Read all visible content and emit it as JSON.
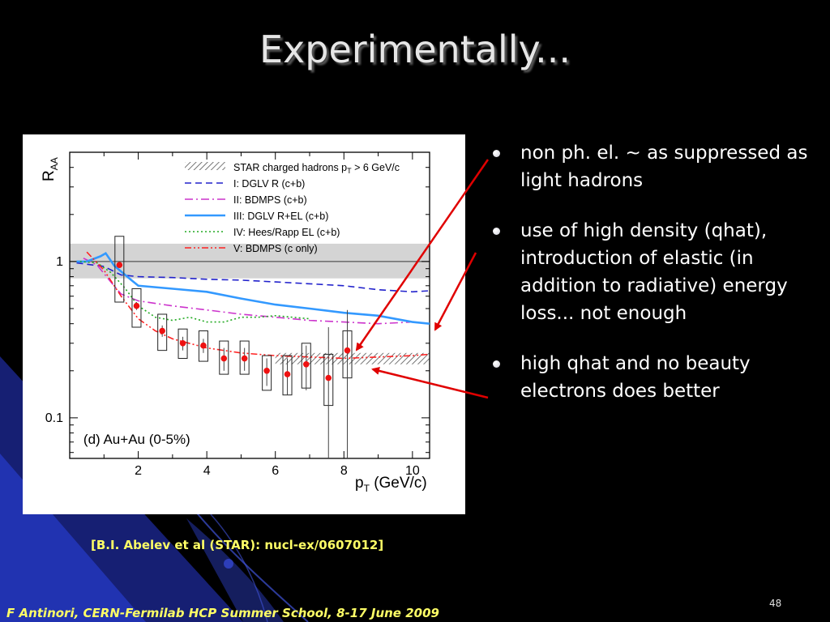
{
  "slide": {
    "title": "Experimentally...",
    "bullets": [
      "non ph. el. ~ as suppressed as light hadrons",
      "use of high density (qhat), introduction of elastic (in addition to radiative) energy loss... not enough",
      "high qhat and no beauty electrons does better"
    ],
    "reference": "[B.I. Abelev et al (STAR): nucl-ex/0607012]",
    "footer": "F Antinori, CERN-Fermilab HCP Summer School, 8-17 June 2009",
    "page_number": "48",
    "colors": {
      "background": "#000000",
      "accent_blue": "#1e2fa0",
      "footer_text": "#ffff66",
      "arrow": "#e00000"
    }
  },
  "chart_data": {
    "type": "scatter",
    "ylabel": "R",
    "ylabel_sub": "AA",
    "xlabel": "p",
    "xlabel_sub": "T",
    "xlabel_unit": "(GeV/c)",
    "yscale": "log",
    "xlim": [
      0,
      10.5
    ],
    "ylim": [
      0.055,
      5.0
    ],
    "xticks": [
      2,
      4,
      6,
      8,
      10
    ],
    "yticks": [
      0.1,
      1
    ],
    "ytick_labels": [
      "0.1",
      "1"
    ],
    "annotation": "(d) Au+Au (0-5%)",
    "reference_line": 1,
    "bands": [
      {
        "name": "light_band",
        "x": [
          0,
          10.5
        ],
        "ylow": 0.78,
        "yhigh": 1.3,
        "color": "#d4d4d4"
      },
      {
        "name": "star_hatch",
        "x": [
          6.0,
          10.5
        ],
        "ylow": 0.22,
        "yhigh": 0.26,
        "color": "#666666"
      }
    ],
    "legend": {
      "position": "top-right",
      "entries": [
        {
          "label": "STAR charged hadrons p",
          "sub": "T",
          "suffix": " > 6 GeV/c",
          "style": "hatch",
          "color": "#777777"
        },
        {
          "label": "I:   DGLV R (c+b)",
          "style": "dashed",
          "color": "#2222cc"
        },
        {
          "label": "II:  BDMPS (c+b)",
          "style": "dashdot",
          "color": "#cc33cc"
        },
        {
          "label": "III: DGLV R+EL (c+b)",
          "style": "solid-thick",
          "color": "#3399ff"
        },
        {
          "label": "IV: Hees/Rapp EL (c+b)",
          "style": "dotted",
          "color": "#22aa22"
        },
        {
          "label": "V:   BDMPS  (c only)",
          "style": "dashdotdot",
          "color": "#ff2222"
        }
      ]
    },
    "series": [
      {
        "name": "I: DGLV R (c+b)",
        "color": "#2222cc",
        "style": "dashed",
        "x": [
          0.2,
          1.0,
          1.5,
          2.0,
          3.0,
          4.0,
          5.0,
          6.0,
          7.0,
          8.0,
          9.0,
          10.0,
          10.5
        ],
        "y": [
          0.98,
          0.93,
          0.82,
          0.8,
          0.79,
          0.77,
          0.76,
          0.74,
          0.72,
          0.7,
          0.66,
          0.64,
          0.65
        ]
      },
      {
        "name": "II: BDMPS (c+b)",
        "color": "#cc33cc",
        "style": "dashdot",
        "x": [
          0.4,
          0.8,
          1.2,
          1.5,
          2.0,
          3.0,
          4.0,
          5.0,
          6.0,
          7.0,
          8.0,
          9.0,
          10.0
        ],
        "y": [
          1.05,
          0.95,
          0.74,
          0.62,
          0.56,
          0.52,
          0.49,
          0.46,
          0.44,
          0.42,
          0.41,
          0.4,
          0.41
        ]
      },
      {
        "name": "III: DGLV R+EL (c+b)",
        "color": "#3399ff",
        "style": "solid-thick",
        "x": [
          0.2,
          0.5,
          0.9,
          1.05,
          1.3,
          1.8,
          2.0,
          3.0,
          4.0,
          5.0,
          6.0,
          7.0,
          8.0,
          9.0,
          10.0,
          10.5
        ],
        "y": [
          1.0,
          1.0,
          1.08,
          1.13,
          0.94,
          0.76,
          0.7,
          0.67,
          0.64,
          0.58,
          0.53,
          0.5,
          0.47,
          0.45,
          0.41,
          0.4
        ]
      },
      {
        "name": "IV: Hees/Rapp EL (c+b)",
        "color": "#22aa22",
        "style": "dotted",
        "x": [
          0.3,
          0.8,
          1.2,
          1.6,
          2.0,
          2.5,
          3.0,
          3.5,
          4.0,
          4.5,
          5.0,
          5.5,
          6.0,
          6.5,
          7.0
        ],
        "y": [
          1.0,
          0.98,
          0.85,
          0.68,
          0.52,
          0.44,
          0.42,
          0.44,
          0.41,
          0.41,
          0.44,
          0.44,
          0.45,
          0.44,
          0.43
        ]
      },
      {
        "name": "V: BDMPS (c only)",
        "color": "#ff2222",
        "style": "dashdotdot",
        "x": [
          0.5,
          1.0,
          1.5,
          2.0,
          2.5,
          3.0,
          4.0,
          5.0,
          6.0,
          7.0,
          8.0,
          9.0,
          10.0,
          10.5
        ],
        "y": [
          1.15,
          0.88,
          0.6,
          0.43,
          0.36,
          0.32,
          0.28,
          0.26,
          0.25,
          0.245,
          0.24,
          0.245,
          0.25,
          0.255
        ]
      }
    ],
    "points": {
      "color": "#ee1111",
      "x": [
        1.45,
        1.95,
        2.7,
        3.3,
        3.9,
        4.5,
        5.1,
        5.75,
        6.35,
        6.9,
        7.55,
        8.1
      ],
      "y": [
        0.95,
        0.52,
        0.36,
        0.3,
        0.29,
        0.24,
        0.24,
        0.2,
        0.19,
        0.22,
        0.18,
        0.27
      ],
      "stat": [
        0.03,
        0.03,
        0.03,
        0.03,
        0.03,
        0.04,
        0.04,
        0.04,
        0.05,
        0.07,
        0.12,
        0.14
      ],
      "sys_low": [
        0.55,
        0.38,
        0.27,
        0.24,
        0.23,
        0.19,
        0.19,
        0.15,
        0.14,
        0.155,
        0.12,
        0.18
      ],
      "sys_high": [
        1.45,
        0.67,
        0.46,
        0.37,
        0.36,
        0.31,
        0.31,
        0.25,
        0.25,
        0.3,
        0.255,
        0.36
      ]
    }
  }
}
